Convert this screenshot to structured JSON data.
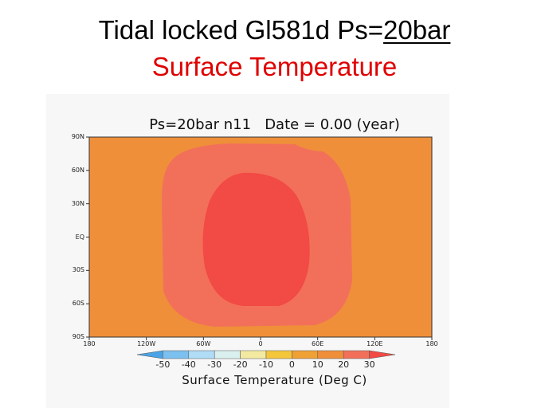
{
  "slide": {
    "title_main": "Tidal locked Gl581d  Ps=",
    "title_underlined": "20bar",
    "subtitle": "Surface Temperature"
  },
  "plot": {
    "title": "Ps=20bar n11   Date = 0.00 (year)",
    "colorbar_label": "Surface Temperature (Deg C)",
    "lat_ticks": [
      "90N",
      "60N",
      "30N",
      "EQ",
      "30S",
      "60S",
      "90S"
    ],
    "lon_ticks": [
      "180",
      "120W",
      "60W",
      "0",
      "60E",
      "120E",
      "180"
    ],
    "colorbar_ticks": [
      "-50",
      "-40",
      "-30",
      "-20",
      "-10",
      "0",
      "10",
      "20",
      "30"
    ],
    "colors": {
      "background_field": "#ef8f3a",
      "ring_field": "#f2705a",
      "core_field": "#f24a44"
    },
    "colorbar_colors": [
      "#4aa3e6",
      "#7cc0f0",
      "#b0dcf5",
      "#d9f0ef",
      "#f4e9a0",
      "#f4c63c",
      "#f0a134",
      "#ef8f3a",
      "#f2705a",
      "#f24a44"
    ]
  }
}
